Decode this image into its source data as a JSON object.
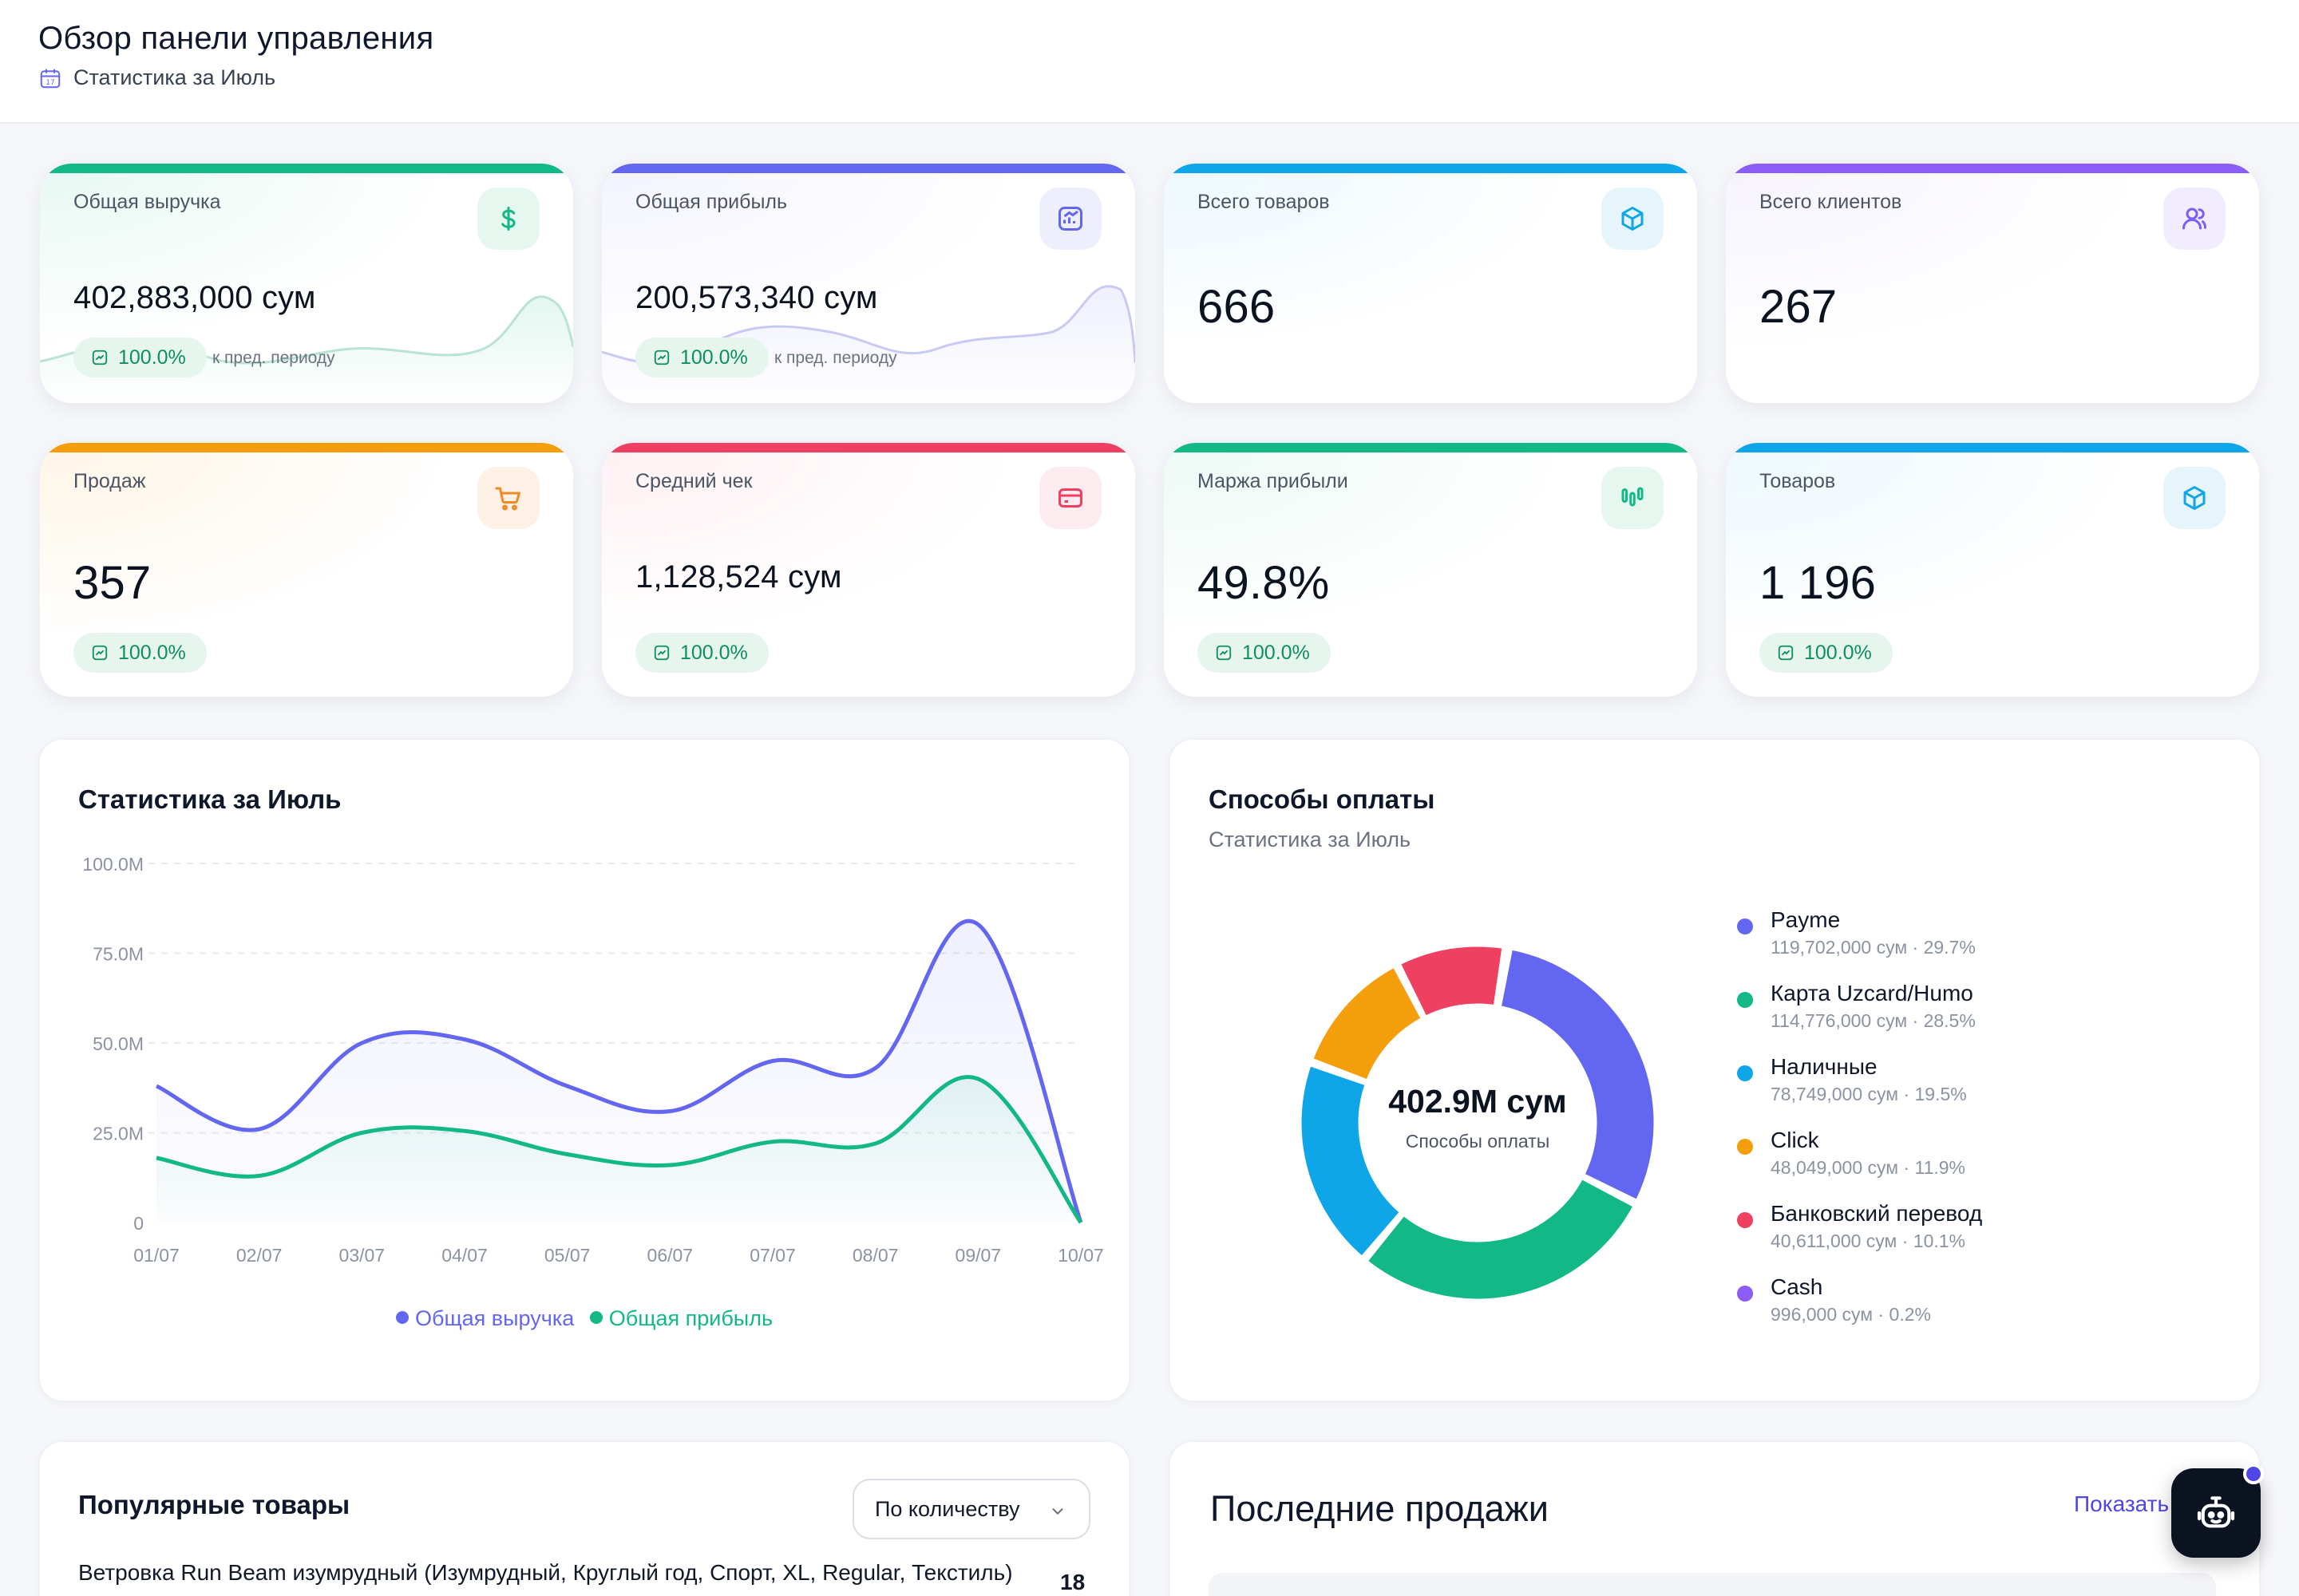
{
  "header": {
    "title": "Обзор панели управления",
    "subtitle": "Статистика за Июль"
  },
  "colors": {
    "green": "#12b886",
    "indigo": "#6366f1",
    "sky": "#0ea5e9",
    "violet": "#8b5cf6",
    "orange": "#f59e0b",
    "red": "#ef4061"
  },
  "cards": [
    {
      "label": "Общая выручка",
      "value": "402,883,000 сум",
      "badge": "100.0%",
      "note": "к пред. периоду",
      "icon": "dollar-icon"
    },
    {
      "label": "Общая прибыль",
      "value": "200,573,340 сум",
      "badge": "100.0%",
      "note": "к пред. периоду",
      "icon": "chart-up-icon"
    },
    {
      "label": "Всего товаров",
      "value": "666",
      "icon": "box-icon"
    },
    {
      "label": "Всего клиентов",
      "value": "267",
      "icon": "users-icon"
    },
    {
      "label": "Продаж",
      "value": "357",
      "badge": "100.0%",
      "icon": "cart-icon"
    },
    {
      "label": "Средний чек",
      "value": "1,128,524 сум",
      "badge": "100.0%",
      "icon": "card-icon"
    },
    {
      "label": "Маржа прибыли",
      "value": "49.8%",
      "badge": "100.0%",
      "icon": "bars-icon"
    },
    {
      "label": "Товаров",
      "value": "1 196",
      "badge": "100.0%",
      "icon": "box-icon"
    }
  ],
  "stats_panel": {
    "title": "Статистика за Июль"
  },
  "payments_panel": {
    "title": "Способы оплаты",
    "subtitle": "Статистика за Июль",
    "center_value": "402.9M сум",
    "center_label": "Способы оплаты",
    "items": [
      {
        "name": "Payme",
        "detail": "119,702,000 сум · 29.7%"
      },
      {
        "name": "Карта Uzcard/Humo",
        "detail": "114,776,000 сум · 28.5%"
      },
      {
        "name": "Наличные",
        "detail": "78,749,000 сум · 19.5%"
      },
      {
        "name": "Click",
        "detail": "48,049,000 сум · 11.9%"
      },
      {
        "name": "Банковский перевод",
        "detail": "40,611,000 сум · 10.1%"
      },
      {
        "name": "Cash",
        "detail": "996,000 сум · 0.2%"
      }
    ]
  },
  "popular_panel": {
    "title": "Популярные товары",
    "sort_selected": "По количеству",
    "first_product": "Ветровка Run Beam изумрудный (Изумрудный, Круглый год, Спорт, XL, Regular, Текстиль)",
    "first_qty": "18"
  },
  "sales_panel": {
    "title": "Последние продажи",
    "show_all": "Показать все"
  },
  "chart_data": [
    {
      "type": "line",
      "title": "Статистика за Июль",
      "x": [
        "01/07",
        "02/07",
        "03/07",
        "04/07",
        "05/07",
        "06/07",
        "07/07",
        "08/07",
        "09/07",
        "10/07"
      ],
      "yticks": [
        "0",
        "25.0M",
        "50.0M",
        "75.0M",
        "100.0M"
      ],
      "ylim": [
        0,
        100
      ],
      "grid": true,
      "legend": "bottom",
      "series": [
        {
          "name": "Общая выручка",
          "color": "#6366f1",
          "values": [
            38,
            26,
            50,
            51,
            38,
            31,
            45,
            43,
            83,
            0
          ]
        },
        {
          "name": "Общая прибыль",
          "color": "#12b886",
          "values": [
            18,
            13,
            25,
            25.5,
            19,
            16,
            22.5,
            22,
            40,
            0
          ]
        }
      ]
    },
    {
      "type": "pie",
      "title": "Способы оплаты",
      "labels": [
        "Payme",
        "Карта Uzcard/Humo",
        "Наличные",
        "Click",
        "Банковский перевод",
        "Cash"
      ],
      "values": [
        29.7,
        28.5,
        19.5,
        11.9,
        10.1,
        0.2
      ],
      "colors": [
        "#6366f1",
        "#12b886",
        "#0ea5e9",
        "#f59e0b",
        "#ef4061",
        "#8b5cf6"
      ]
    }
  ]
}
